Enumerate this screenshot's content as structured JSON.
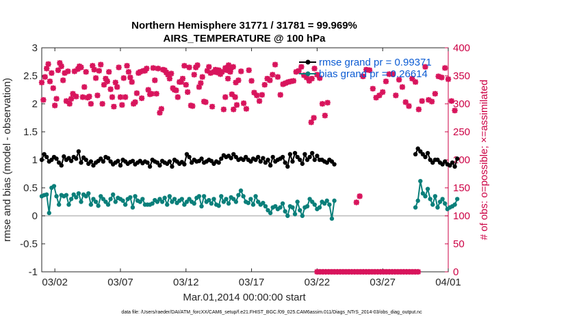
{
  "chart_data": {
    "type": "line",
    "title": "Northern Hemisphere 31771 / 31781 = 99.969%",
    "subtitle": "AIRS_TEMPERATURE @ 100 hPa",
    "xlabel": "Mar.01,2014 00:00:00 start",
    "ylabel_left": "rmse and bias (model - observation)",
    "ylabel_right": "# of obs: o=possible; ×=assimilated",
    "footer": "data file: /Users/raeder/DAI/ATM_forcXX/CAM6_setup/f.e21.FHIST_BGC.f09_025.CAM6assim.011/Diags_NTrS_2014-03/obs_diag_output.nc",
    "xticks": [
      {
        "day": 1.0,
        "label": "03/02"
      },
      {
        "day": 6.0,
        "label": "03/07"
      },
      {
        "day": 11.0,
        "label": "03/12"
      },
      {
        "day": 16.0,
        "label": "03/17"
      },
      {
        "day": 21.0,
        "label": "03/22"
      },
      {
        "day": 26.0,
        "label": "03/27"
      },
      {
        "day": 31.0,
        "label": "04/01"
      }
    ],
    "yticks_left": [
      "3",
      "2.5",
      "2",
      "1.5",
      "1",
      "0.5",
      "0",
      "-0.5",
      "-1"
    ],
    "yticks_right": [
      "400",
      "350",
      "300",
      "250",
      "200",
      "150",
      "100",
      "50",
      "0"
    ],
    "xlim_days": [
      0.0,
      31.0
    ],
    "ylim_left": [
      -1,
      3
    ],
    "ylim_right": [
      0,
      400
    ],
    "grid": false,
    "legend_position": "top-right",
    "colors": {
      "rmse": "#000000",
      "bias": "#0a7f7a",
      "obs": "#d8145c",
      "zero_line": "#bcbcbc",
      "legend_text": "#0b5bd3",
      "right_axis": "#cc0044"
    },
    "series": [
      {
        "name": "rmse grand pr = 0.99371",
        "key": "rmse",
        "segments": [
          [
            1.0,
            1.1,
            1.05,
            0.97,
            1.0,
            1.05,
            1.02,
            0.95,
            0.9,
            1.06,
            1.0,
            1.03,
            0.98,
            1.05,
            1.02,
            1.15,
            0.95,
            1.04,
            1.0,
            0.93,
            0.97,
            0.9,
            0.95,
            0.98,
            1.02,
            0.97,
            1.05,
            1.03,
            0.97,
            0.92,
            0.95,
            0.98,
            0.9,
            1.0,
            0.97,
            0.93,
            0.96,
            0.98,
            0.92,
            0.95,
            0.98,
            0.94,
            0.97,
            0.95,
            0.88,
            1.0,
            0.97,
            0.95,
            0.9,
            0.98,
            0.95,
            0.93,
            0.97,
            0.88,
            1.0,
            0.97,
            0.93,
            0.96,
            0.92,
            1.1,
            1.05,
            0.95,
            1.0,
            0.97,
            0.98,
            1.02,
            0.95,
            0.97,
            1.0,
            0.98,
            0.93,
            0.97,
            0.95,
            1.02,
            1.08,
            1.05,
            1.07,
            1.03,
            1.1,
            1.05,
            1.0,
            1.02,
            1.0,
            1.05,
            1.0,
            0.97,
            1.02,
            1.0,
            1.05,
            0.97,
            1.03,
            0.95,
            1.0,
            0.9,
            1.05,
            0.97,
            1.0,
            1.02,
            1.05,
            0.95,
            0.88,
            1.1,
            0.97,
            1.12,
            1.05,
            1.0,
            0.93,
            1.1,
            1.0,
            1.05,
            1.12,
            1.0,
            1.07,
            1.0,
            1.0,
            0.97,
            0.95,
            1.0,
            0.97,
            0.92
          ],
          [
            1.1,
            1.2,
            1.15,
            1.1,
            1.05,
            1.12,
            1.0,
            0.95,
            1.0,
            1.0,
            0.95,
            0.92,
            0.97,
            0.92,
            0.9,
            0.95,
            0.88,
            1.02
          ]
        ],
        "segment_start_days": [
          0.0,
          28.5
        ]
      },
      {
        "name": "bias grand pr = 0.26614",
        "key": "bias",
        "segments": [
          [
            0.35,
            0.37,
            0.38,
            0.05,
            0.5,
            0.53,
            0.35,
            0.2,
            0.37,
            0.35,
            0.37,
            0.2,
            0.3,
            0.38,
            0.33,
            0.4,
            0.25,
            0.38,
            0.35,
            0.4,
            0.2,
            0.3,
            0.25,
            0.18,
            0.35,
            0.3,
            0.25,
            0.2,
            0.3,
            0.38,
            0.25,
            0.32,
            0.3,
            0.27,
            0.2,
            0.3,
            0.33,
            0.15,
            0.35,
            0.27,
            0.25,
            0.3,
            0.2,
            0.2,
            0.2,
            0.22,
            0.28,
            0.25,
            0.3,
            0.25,
            0.32,
            0.2,
            0.35,
            0.25,
            0.3,
            0.23,
            0.27,
            0.3,
            0.2,
            0.25,
            0.3,
            0.25,
            0.22,
            0.32,
            0.35,
            0.17,
            0.35,
            0.25,
            0.28,
            0.22,
            0.3,
            0.2,
            0.18,
            0.35,
            0.25,
            0.3,
            0.22,
            0.33,
            0.3,
            0.25,
            0.37,
            0.45,
            0.35,
            0.25,
            0.23,
            0.3,
            0.2,
            0.35,
            0.25,
            0.2,
            0.23,
            0.17,
            0.1,
            0.05,
            0.15,
            0.17,
            0.12,
            0.15,
            0.22,
            0.08,
            0.0,
            0.17,
            0.15,
            0.03,
            0.25,
            0.1,
            0.0,
            0.15,
            0.17,
            0.3,
            0.25,
            0.2,
            0.12,
            0.15,
            0.25,
            0.22,
            0.27,
            0.2,
            -0.05,
            0.27
          ],
          [
            0.15,
            0.27,
            0.62,
            0.4,
            0.35,
            0.48,
            0.3,
            0.2,
            0.35,
            0.15,
            0.25,
            0.3,
            0.22,
            0.12,
            0.15,
            0.17,
            0.2,
            0.3
          ]
        ],
        "segment_start_days": [
          0.0,
          28.5
        ]
      }
    ],
    "obs_assimilated": {
      "key": "obs",
      "segments": [
        [
          338,
          307,
          348,
          363,
          371,
          340,
          355,
          328,
          297,
          309,
          360,
          373,
          367,
          342,
          355,
          305,
          358,
          300,
          309,
          318,
          358,
          313,
          362,
          367,
          365,
          312,
          330,
          357,
          311,
          313,
          300,
          368,
          361,
          346,
          315,
          359,
          370,
          300,
          334,
          345,
          340,
          357,
          326,
          312,
          295,
          338,
          330,
          365,
          312,
          298,
          346,
          312,
          368,
          357,
          347,
          339,
          300,
          303,
          319,
          355,
          357,
          310,
          359,
          359,
          363,
          325,
          317,
          318,
          364,
          342,
          318,
          363,
          284,
          291,
          361,
          360,
          356,
          352,
          345,
          354,
          328,
          325,
          324,
          312,
          339,
          339,
          345,
          368,
          334,
          321,
          365,
          297,
          296,
          352,
          365,
          369,
          330,
          337,
          348,
          304,
          303,
          359,
          366,
          355,
          295,
          357,
          361,
          356,
          360,
          353,
          357,
          290,
          364,
          360,
          369,
          357,
          317,
          290,
          312,
          298
        ],
        [
          312,
          345,
          361,
          366,
          338,
          342,
          358,
          301,
          291,
          360,
          341,
          320,
          315,
          305,
          316,
          334,
          345,
          342,
          352,
          370,
          348,
          316,
          335,
          337,
          339,
          340,
          341,
          357,
          359,
          366,
          351,
          347,
          341,
          345,
          363,
          352,
          346,
          300,
          279,
          302
        ],
        [
          267,
          275
        ],
        [
          124,
          135,
          349,
          361,
          360,
          327,
          311,
          315,
          321,
          340,
          353,
          353,
          315,
          343,
          330,
          303,
          296,
          345,
          339,
          290,
          305,
          366,
          307,
          304,
          318,
          349,
          347,
          364,
          344,
          305,
          288
        ],
        [
          0,
          0,
          0,
          0,
          0,
          0,
          0,
          0,
          0,
          0,
          0,
          0,
          0,
          0,
          0,
          0,
          0,
          0,
          0,
          0,
          0,
          0,
          0,
          0,
          0,
          0,
          0,
          0,
          0,
          0,
          0,
          0,
          0,
          0,
          0,
          0
        ]
      ],
      "segment_start_days": [
        0.0,
        14.0,
        20.55,
        24.0,
        21.0
      ],
      "segment_step_days": [
        0.125,
        0.2,
        0.2,
        0.25,
        0.22
      ]
    },
    "step_days": 0.1875
  }
}
